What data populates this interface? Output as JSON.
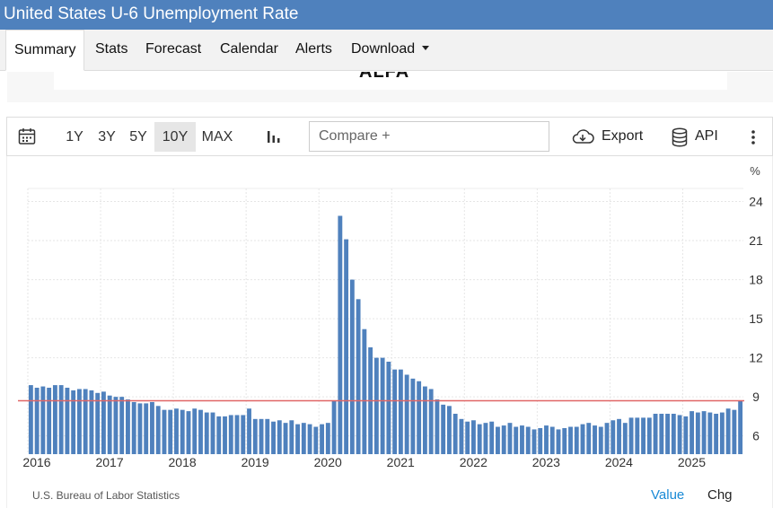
{
  "page": {
    "title": "United States U-6 Unemployment Rate"
  },
  "tabs": [
    {
      "label": "Summary",
      "active": true
    },
    {
      "label": "Stats"
    },
    {
      "label": "Forecast"
    },
    {
      "label": "Calendar"
    },
    {
      "label": "Alerts"
    },
    {
      "label": "Download"
    }
  ],
  "ad": {
    "text": "ALFA"
  },
  "toolbar": {
    "ranges": [
      "1Y",
      "3Y",
      "5Y",
      "10Y",
      "MAX"
    ],
    "active_range": "10Y",
    "compare_placeholder": "Compare +",
    "export_label": "Export",
    "api_label": "API"
  },
  "colors": {
    "bar": "#4f81bd",
    "reference_line": "#e06666",
    "title_bar": "#4f81bd",
    "link": "#1a8ad6"
  },
  "icons": [
    "calendar-icon",
    "bar-chart-icon",
    "cloud-download-icon",
    "database-icon",
    "more-vertical-icon",
    "caret-down-icon"
  ],
  "chart_data": {
    "type": "bar",
    "title": "",
    "unit_label": "%",
    "ylim": [
      4.6,
      25
    ],
    "yticks": [
      6,
      9,
      12,
      15,
      18,
      21,
      24
    ],
    "x_labels": [
      "2016",
      "2017",
      "2018",
      "2019",
      "2020",
      "2021",
      "2022",
      "2023",
      "2024",
      "2025"
    ],
    "reference_value": 8.7,
    "grid": true,
    "series": [
      {
        "values": [
          9.9,
          9.7,
          9.8,
          9.7,
          9.9,
          9.9,
          9.7,
          9.5,
          9.6,
          9.6,
          9.5,
          9.3,
          9.4,
          9.1,
          9.0,
          9.0,
          8.8,
          8.6,
          8.5,
          8.5,
          8.6,
          8.3,
          8.0,
          8.0,
          8.1,
          8.0,
          7.9,
          8.1,
          8.0,
          7.8,
          7.8,
          7.5,
          7.5,
          7.6,
          7.6,
          7.6,
          8.1,
          7.3,
          7.3,
          7.3,
          7.1,
          7.2,
          7.0,
          7.2,
          6.9,
          7.0,
          6.9,
          6.7,
          6.9,
          7.0,
          8.7,
          22.9,
          21.1,
          18.0,
          16.5,
          14.2,
          12.8,
          12.0,
          12.0,
          11.7,
          11.1,
          11.1,
          10.7,
          10.4,
          10.2,
          9.8,
          9.6,
          8.8,
          8.4,
          8.3,
          7.7,
          7.3,
          7.1,
          7.2,
          6.9,
          7.0,
          7.1,
          6.7,
          6.8,
          7.0,
          6.7,
          6.8,
          6.7,
          6.5,
          6.6,
          6.8,
          6.7,
          6.5,
          6.6,
          6.7,
          6.7,
          6.9,
          7.0,
          6.8,
          6.7,
          7.0,
          7.2,
          7.3,
          7.0,
          7.4,
          7.4,
          7.4,
          7.4,
          7.7,
          7.7,
          7.7,
          7.7,
          7.6,
          7.5,
          7.9,
          7.8,
          7.9,
          7.8,
          7.7,
          7.8,
          8.1,
          8.0,
          8.7
        ]
      }
    ]
  },
  "footer": {
    "source": "U.S. Bureau of Labor Statistics",
    "value_label": "Value",
    "chg_label": "Chg"
  }
}
